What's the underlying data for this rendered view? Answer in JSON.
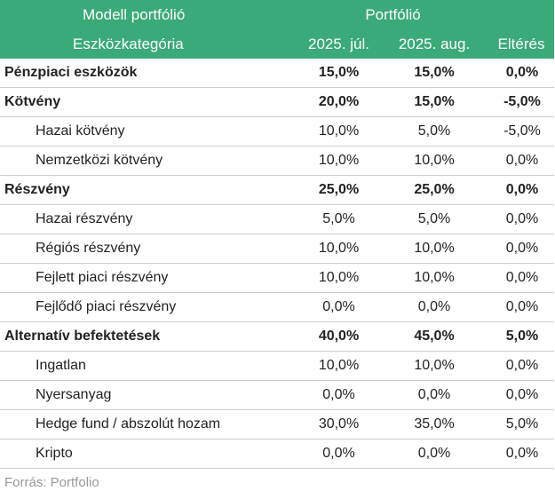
{
  "header": {
    "model_label": "Modell portfólió",
    "portfolio_label": "Portfólió",
    "category_label": "Eszközkategória",
    "col_jul": "2025. júl.",
    "col_aug": "2025. aug.",
    "col_diff": "Eltérés"
  },
  "rows": [
    {
      "name": "Pénzpiaci eszközök",
      "jul": "15,0%",
      "aug": "15,0%",
      "diff": "0,0%"
    },
    {
      "name": "Kötvény",
      "jul": "20,0%",
      "aug": "15,0%",
      "diff": "-5,0%"
    },
    {
      "name": "Hazai kötvény",
      "jul": "10,0%",
      "aug": "5,0%",
      "diff": "-5,0%"
    },
    {
      "name": "Nemzetközi kötvény",
      "jul": "10,0%",
      "aug": "10,0%",
      "diff": "0,0%"
    },
    {
      "name": "Részvény",
      "jul": "25,0%",
      "aug": "25,0%",
      "diff": "0,0%"
    },
    {
      "name": "Hazai részvény",
      "jul": "5,0%",
      "aug": "5,0%",
      "diff": "0,0%"
    },
    {
      "name": "Régiós részvény",
      "jul": "10,0%",
      "aug": "10,0%",
      "diff": "0,0%"
    },
    {
      "name": "Fejlett piaci részvény",
      "jul": "10,0%",
      "aug": "10,0%",
      "diff": "0,0%"
    },
    {
      "name": "Fejlődő piaci részvény",
      "jul": "0,0%",
      "aug": "0,0%",
      "diff": "0,0%"
    },
    {
      "name": "Alternatív befektetések",
      "jul": "40,0%",
      "aug": "45,0%",
      "diff": "5,0%"
    },
    {
      "name": "Ingatlan",
      "jul": "10,0%",
      "aug": "10,0%",
      "diff": "0,0%"
    },
    {
      "name": "Nyersanyag",
      "jul": "0,0%",
      "aug": "0,0%",
      "diff": "0,0%"
    },
    {
      "name": "Hedge fund / abszolút hozam",
      "jul": "30,0%",
      "aug": "35,0%",
      "diff": "5,0%"
    },
    {
      "name": "Kripto",
      "jul": "0,0%",
      "aug": "0,0%",
      "diff": "0,0%"
    }
  ],
  "source": "Forrás: Portfolio",
  "colors": {
    "header_bg": "#3aaa78",
    "header_text": "#ffffff"
  }
}
